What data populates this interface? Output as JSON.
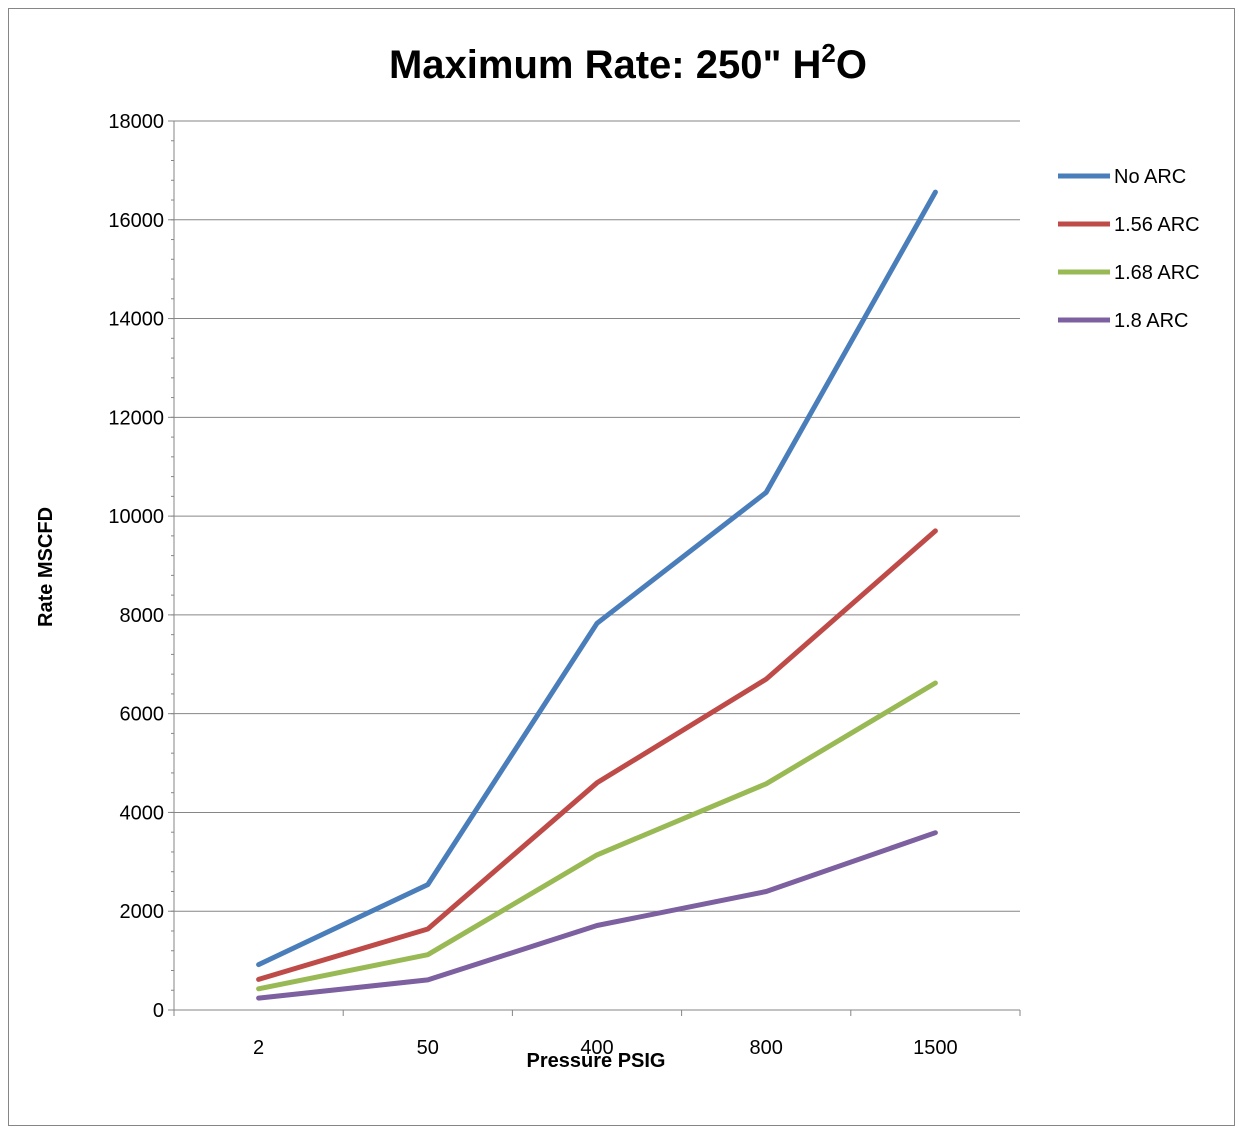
{
  "chart_data": {
    "type": "line",
    "title": "Maximum Rate: 250\" H",
    "title_superscript": "2",
    "title_suffix": "O",
    "xlabel": "Pressure PSIG",
    "ylabel": "Rate MSCFD",
    "categories": [
      "2",
      "50",
      "400",
      "800",
      "1500"
    ],
    "ylim": [
      0,
      18000
    ],
    "y_ticks": [
      0,
      2000,
      4000,
      6000,
      8000,
      10000,
      12000,
      14000,
      16000,
      18000
    ],
    "y_tick_labels": [
      "0",
      "2000",
      "4000",
      "6000",
      "8000",
      "10000",
      "12000",
      "14000",
      "16000",
      "18000"
    ],
    "grid": true,
    "legend_position": "right",
    "series": [
      {
        "name": "No ARC",
        "color": "#4a7ebb",
        "values": [
          920,
          2540,
          7830,
          10480,
          16560
        ]
      },
      {
        "name": "1.56 ARC",
        "color": "#be4b48",
        "values": [
          620,
          1640,
          4600,
          6700,
          9700
        ]
      },
      {
        "name": "1.68 ARC",
        "color": "#98b954",
        "values": [
          430,
          1120,
          3140,
          4580,
          6620
        ]
      },
      {
        "name": "1.8 ARC",
        "color": "#7d60a0",
        "values": [
          240,
          610,
          1710,
          2400,
          3590
        ]
      }
    ]
  }
}
